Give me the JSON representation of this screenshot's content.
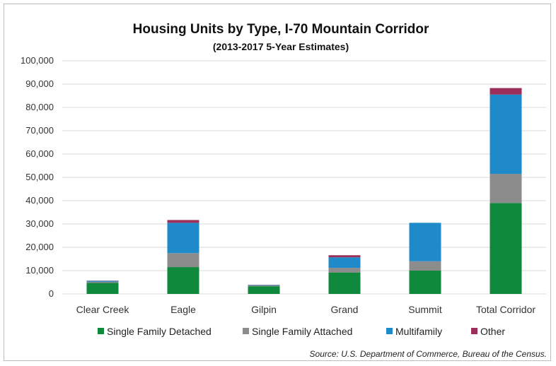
{
  "chart_data": {
    "type": "bar",
    "stacked": true,
    "title": "Housing Units by Type, I-70 Mountain Corridor",
    "subtitle": "(2013-2017 5-Year Estimates)",
    "categories": [
      "Clear Creek",
      "Eagle",
      "Gilpin",
      "Grand",
      "Summit",
      "Total Corridor"
    ],
    "series": [
      {
        "name": "Single Family Detached",
        "color": "#0f8a3c",
        "values": [
          4700,
          11500,
          3300,
          9200,
          10000,
          39000
        ]
      },
      {
        "name": "Single Family Attached",
        "color": "#8c8c8c",
        "values": [
          500,
          6000,
          300,
          2000,
          4000,
          12500
        ]
      },
      {
        "name": "Multifamily",
        "color": "#1f8ac9",
        "values": [
          400,
          13000,
          200,
          4500,
          16500,
          34000
        ]
      },
      {
        "name": "Other",
        "color": "#9c2f5a",
        "values": [
          100,
          1200,
          100,
          900,
          0,
          2800
        ]
      }
    ],
    "ylim": [
      0,
      100000
    ],
    "yticks": [
      0,
      10000,
      20000,
      30000,
      40000,
      50000,
      60000,
      70000,
      80000,
      90000,
      100000
    ],
    "ytick_labels": [
      "0",
      "10,000",
      "20,000",
      "30,000",
      "40,000",
      "50,000",
      "60,000",
      "70,000",
      "80,000",
      "90,000",
      "100,000"
    ],
    "grid": true,
    "legend_position": "bottom",
    "source": "Source: U.S. Department of Commerce, Bureau of the Census."
  }
}
